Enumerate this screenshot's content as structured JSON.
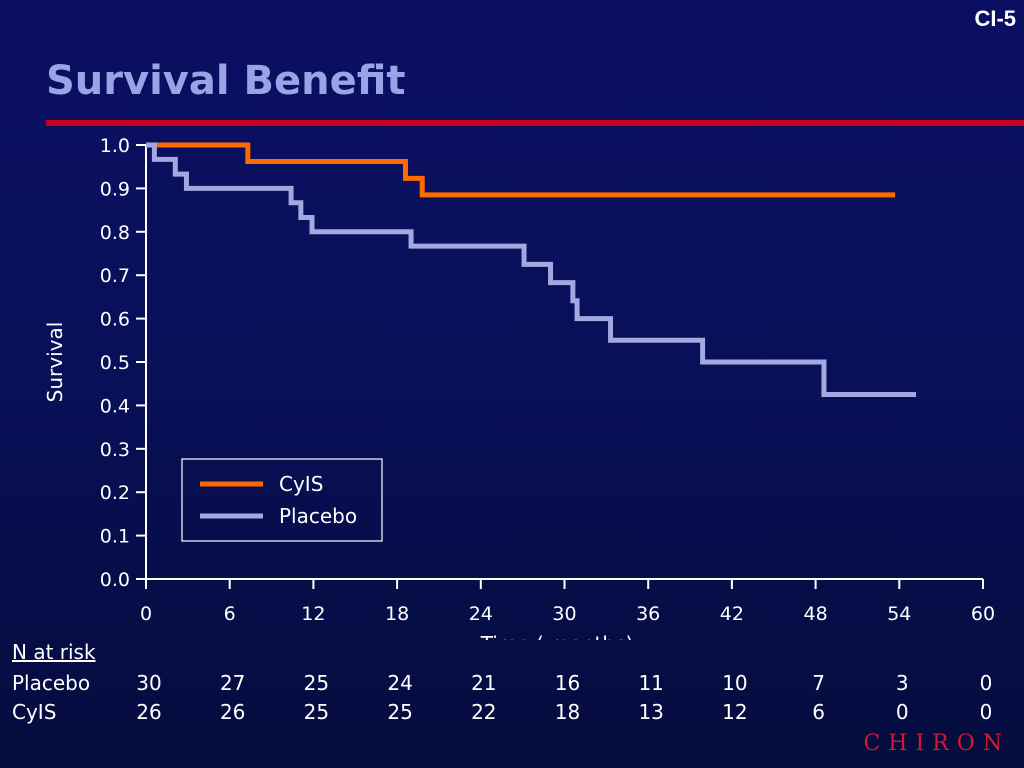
{
  "slide": {
    "id": "CI-5",
    "title": "Survival Benefit"
  },
  "brand": "CHIRON",
  "colors": {
    "cyis": "#ff6a00",
    "placebo": "#a3a8e0",
    "accent_rule": "#c8001e"
  },
  "chart_data": {
    "type": "line",
    "subtype": "kaplan-meier step",
    "xlabel": "Time ( months)",
    "ylabel": "Survival",
    "xlim": [
      0,
      60
    ],
    "ylim": [
      0,
      1.0
    ],
    "xticks": [
      0,
      6,
      12,
      18,
      24,
      30,
      36,
      42,
      48,
      54,
      60
    ],
    "yticks": [
      "0.0",
      "0.1",
      "0.2",
      "0.3",
      "0.4",
      "0.5",
      "0.6",
      "0.7",
      "0.8",
      "0.9",
      "1.0"
    ],
    "grid": false,
    "legend_position": "lower-left",
    "series": [
      {
        "name": "CyIS",
        "color": "#ff6a00",
        "x": [
          0,
          7.3,
          18.6,
          19.8,
          53.7
        ],
        "y": [
          1.0,
          0.962,
          0.923,
          0.885,
          0.885
        ]
      },
      {
        "name": "Placebo",
        "color": "#a3a8e0",
        "x": [
          0,
          0.6,
          2.1,
          2.9,
          10.4,
          11.1,
          11.9,
          19.0,
          27.1,
          29.0,
          30.6,
          30.9,
          33.3,
          39.9,
          48.6,
          55.2
        ],
        "y": [
          1.0,
          0.967,
          0.933,
          0.9,
          0.867,
          0.833,
          0.8,
          0.767,
          0.725,
          0.683,
          0.641,
          0.6,
          0.55,
          0.5,
          0.425,
          0.425
        ]
      }
    ]
  },
  "risk_table": {
    "header": "N at risk",
    "times": [
      "0",
      "6",
      "12",
      "18",
      "24",
      "30",
      "36",
      "42",
      "48",
      "54",
      "60"
    ],
    "rows": [
      {
        "label": "Placebo",
        "values": [
          "30",
          "27",
          "25",
          "24",
          "21",
          "16",
          "11",
          "10",
          "7",
          "3",
          "0"
        ]
      },
      {
        "label": "CyIS",
        "values": [
          "26",
          "26",
          "25",
          "25",
          "22",
          "18",
          "13",
          "12",
          "6",
          "0",
          "0"
        ]
      }
    ]
  }
}
